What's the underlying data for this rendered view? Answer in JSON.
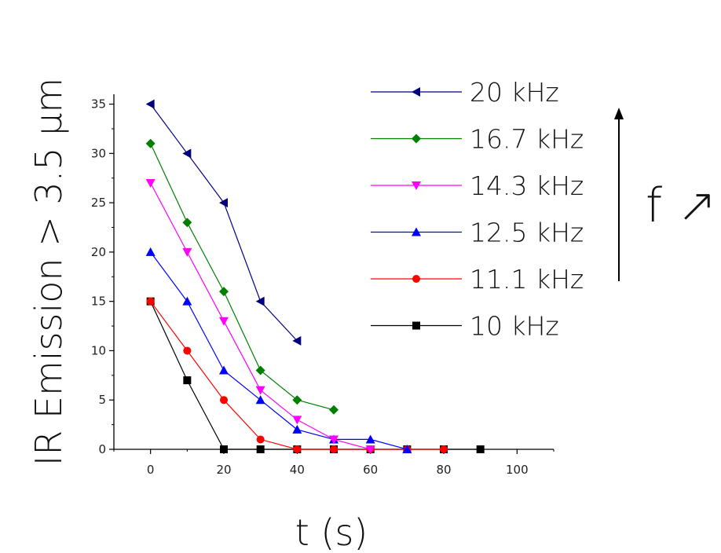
{
  "chart_data": {
    "type": "line",
    "xlabel": "t (s)",
    "ylabel": "IR Emission > 3.5 µm",
    "xlim": [
      -10,
      110
    ],
    "ylim": [
      0,
      36
    ],
    "xticks": [
      0,
      20,
      40,
      60,
      80,
      100
    ],
    "yticks": [
      0,
      5,
      10,
      15,
      20,
      25,
      30,
      35
    ],
    "grid": false,
    "legend_position": "top-right",
    "series": [
      {
        "name": "20 kHz",
        "color": "#00007f",
        "marker": "triangle-left",
        "x": [
          0,
          10,
          20,
          30,
          40
        ],
        "y": [
          35,
          30,
          25,
          15,
          11
        ]
      },
      {
        "name": "16.7 kHz",
        "color": "#007f00",
        "marker": "diamond",
        "x": [
          0,
          10,
          20,
          30,
          40,
          50
        ],
        "y": [
          31,
          23,
          16,
          8,
          5,
          4
        ]
      },
      {
        "name": "14.3 kHz",
        "color": "#ff00ff",
        "marker": "triangle-down",
        "x": [
          0,
          10,
          20,
          30,
          40,
          50,
          60
        ],
        "y": [
          27,
          20,
          13,
          6,
          3,
          1,
          0
        ]
      },
      {
        "name": "12.5 kHz",
        "color": "#0000ff",
        "marker": "triangle-up",
        "x": [
          0,
          10,
          20,
          30,
          40,
          50,
          60,
          70
        ],
        "y": [
          20,
          15,
          8,
          5,
          2,
          1,
          1,
          0
        ]
      },
      {
        "name": "11.1 kHz",
        "color": "#ff0000",
        "marker": "circle",
        "x": [
          0,
          10,
          20,
          30,
          40,
          50,
          60,
          70,
          80
        ],
        "y": [
          15,
          10,
          5,
          1,
          0,
          0,
          0,
          0,
          0
        ]
      },
      {
        "name": "10 kHz",
        "color": "#000000",
        "marker": "square",
        "x": [
          0,
          10,
          20,
          30,
          40,
          50,
          60,
          70,
          80,
          90
        ],
        "y": [
          15,
          7,
          0,
          0,
          0,
          0,
          0,
          0,
          0,
          0
        ]
      }
    ],
    "annotation": {
      "text": "f ↗",
      "arrow": "up"
    }
  }
}
